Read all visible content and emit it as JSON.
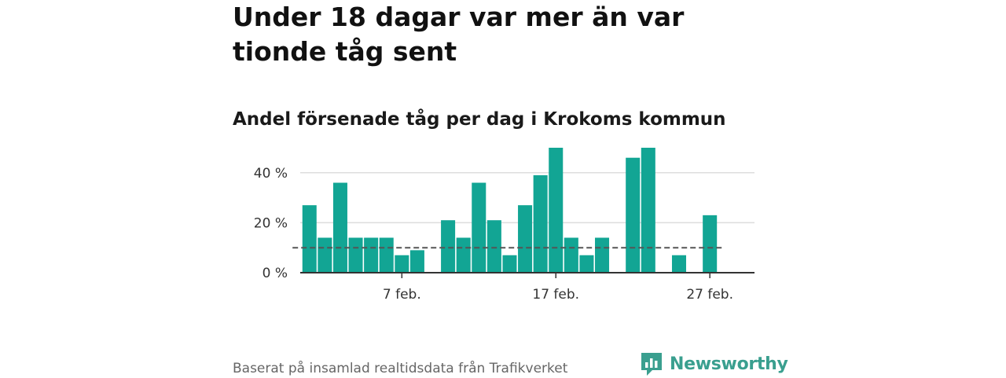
{
  "title": "Under 18 dagar var mer än var tionde tåg sent",
  "subtitle": "Andel försenade tåg per dag i Krokoms kommun",
  "footer": "Baserat på insamlad realtidsdata från Trafikverket",
  "brand": {
    "name": "Newsworthy",
    "icon": "newsworthy-logo-icon",
    "color": "#3a9f8f"
  },
  "colors": {
    "bar": "#12a594",
    "grid": "#dddddd",
    "reference": "#555555",
    "axis": "#333333"
  },
  "chart_data": {
    "type": "bar",
    "x_start_day": 1,
    "x_labels": [
      {
        "day": 7,
        "label": "7 feb."
      },
      {
        "day": 17,
        "label": "17 feb."
      },
      {
        "day": 27,
        "label": "27 feb."
      }
    ],
    "y_ticks": [
      {
        "value": 0,
        "label": "0 %"
      },
      {
        "value": 20,
        "label": "20 %"
      },
      {
        "value": 40,
        "label": "40 %"
      }
    ],
    "ylim": [
      0,
      50
    ],
    "xlim_days": [
      0.4,
      29.9
    ],
    "values": [
      27,
      14,
      36,
      14,
      14,
      14,
      7,
      9,
      null,
      21,
      14,
      36,
      21,
      7,
      27,
      39,
      50,
      14,
      7,
      14,
      null,
      46,
      50,
      null,
      7,
      null,
      23
    ],
    "reference_line": 10,
    "grid": true
  }
}
